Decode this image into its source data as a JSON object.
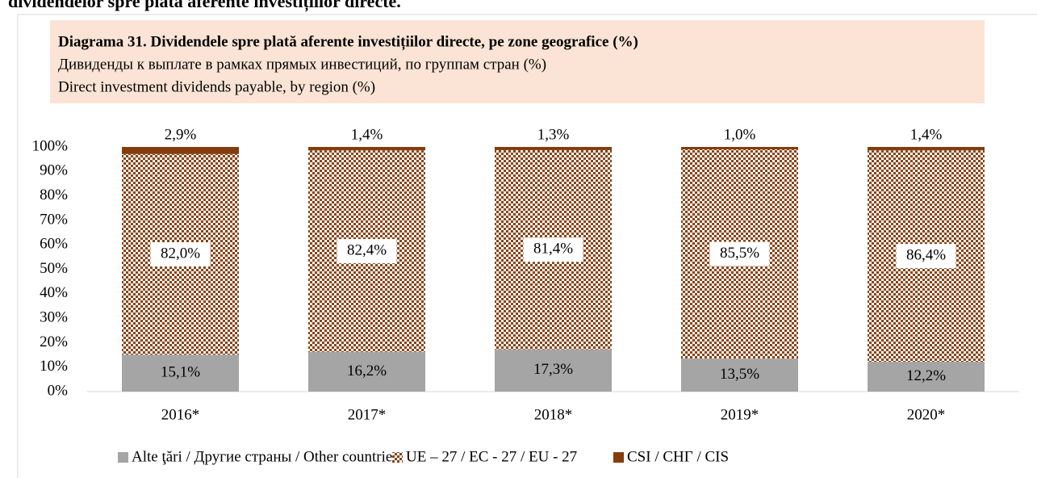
{
  "page_heading": "dividendelor spre plată aferente investițiilor directe.",
  "chart_data": {
    "type": "stacked_bar",
    "title": "Diagrama 31. Dividendele spre plată aferente investițiilor directe, pe zone geografice (%)",
    "subtitle": [
      "Дивиденды к выплате в рамках прямых инвестиций, по группам стран (%)",
      "Direct investment dividends payable, by region (%)"
    ],
    "categories": [
      "2016*",
      "2017*",
      "2018*",
      "2019*",
      "2020*"
    ],
    "series": [
      {
        "name": "Alte ţări / Другие страны / Other countries",
        "color": "#a5a5a5",
        "values": [
          15.1,
          16.2,
          17.3,
          13.5,
          12.2
        ],
        "value_labels": [
          "15,1%",
          "16,2%",
          "17,3%",
          "13,5%",
          "12,2%"
        ]
      },
      {
        "name": "UE – 27 / ЕС - 27 / EU - 27",
        "color": "#8a4316",
        "pattern": "checker",
        "values": [
          82.0,
          82.4,
          81.4,
          85.5,
          86.4
        ],
        "value_labels": [
          "82,0%",
          "82,4%",
          "81,4%",
          "85,5%",
          "86,4%"
        ]
      },
      {
        "name": "CSI / СНГ / CIS",
        "color": "#843c0c",
        "values": [
          2.9,
          1.4,
          1.3,
          1.0,
          1.4
        ],
        "value_labels": [
          "2,9%",
          "1,4%",
          "1,3%",
          "1,0%",
          "1,4%"
        ]
      }
    ],
    "ylim": [
      0,
      100
    ],
    "yticks": [
      {
        "value": 0,
        "label": "0%"
      },
      {
        "value": 10,
        "label": "10%"
      },
      {
        "value": 20,
        "label": "20%"
      },
      {
        "value": 30,
        "label": "30%"
      },
      {
        "value": 40,
        "label": "40%"
      },
      {
        "value": 50,
        "label": "50%"
      },
      {
        "value": 60,
        "label": "60%"
      },
      {
        "value": 70,
        "label": "70%"
      },
      {
        "value": 80,
        "label": "80%"
      },
      {
        "value": 90,
        "label": "90%"
      },
      {
        "value": 100,
        "label": "100%"
      }
    ],
    "legend": "bottom"
  }
}
